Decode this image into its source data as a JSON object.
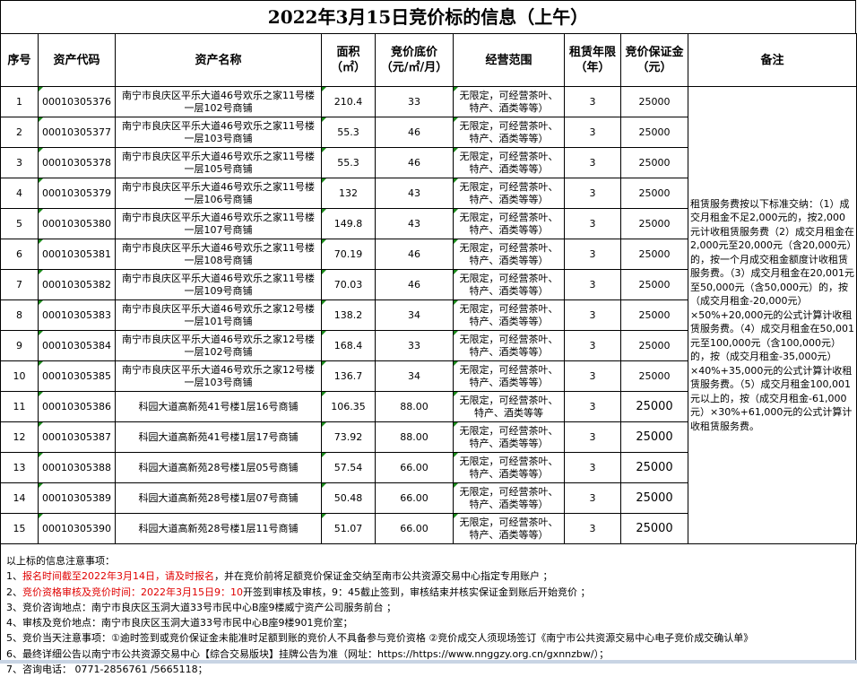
{
  "title": "2022年3月15日竞价标的信息（上午）",
  "headers": [
    "序号",
    "资产代码",
    "资产名称",
    "面积（㎡）",
    "竞价底价（元/㎡/月）",
    "经营范围",
    "租赁年限（年）",
    "竞价保证金（元）",
    "备注"
  ],
  "rows": [
    {
      "no": "1",
      "code": "00010305376",
      "name": "南宁市良庆区平乐大道46号欢乐之家11号楼一层102号商铺",
      "area": "210.4",
      "price": "33",
      "scope": "无限定，可经营茶叶、特产、酒类等等）",
      "years": "3",
      "deposit": "25000"
    },
    {
      "no": "2",
      "code": "00010305377",
      "name": "南宁市良庆区平乐大道46号欢乐之家11号楼一层103号商铺",
      "area": "55.3",
      "price": "46",
      "scope": "无限定，可经营茶叶、特产、酒类等等）",
      "years": "3",
      "deposit": "25000"
    },
    {
      "no": "3",
      "code": "00010305378",
      "name": "南宁市良庆区平乐大道46号欢乐之家11号楼一层105号商铺",
      "area": "55.3",
      "price": "46",
      "scope": "无限定，可经营茶叶、特产、酒类等等）",
      "years": "3",
      "deposit": "25000"
    },
    {
      "no": "4",
      "code": "00010305379",
      "name": "南宁市良庆区平乐大道46号欢乐之家11号楼一层106号商铺",
      "area": "132",
      "price": "43",
      "scope": "无限定，可经营茶叶、特产、酒类等等）",
      "years": "3",
      "deposit": "25000"
    },
    {
      "no": "5",
      "code": "00010305380",
      "name": "南宁市良庆区平乐大道46号欢乐之家11号楼一层107号商铺",
      "area": "149.8",
      "price": "43",
      "scope": "无限定，可经营茶叶、特产、酒类等等）",
      "years": "3",
      "deposit": "25000"
    },
    {
      "no": "6",
      "code": "00010305381",
      "name": "南宁市良庆区平乐大道46号欢乐之家11号楼一层108号商铺",
      "area": "70.19",
      "price": "46",
      "scope": "无限定，可经营茶叶、特产、酒类等等）",
      "years": "3",
      "deposit": "25000"
    },
    {
      "no": "7",
      "code": "00010305382",
      "name": "南宁市良庆区平乐大道46号欢乐之家11号楼一层109号商铺",
      "area": "70.03",
      "price": "46",
      "scope": "无限定，可经营茶叶、特产、酒类等等）",
      "years": "3",
      "deposit": "25000"
    },
    {
      "no": "8",
      "code": "00010305383",
      "name": "南宁市良庆区平乐大道46号欢乐之家12号楼一层101号商铺",
      "area": "138.2",
      "price": "34",
      "scope": "无限定，可经营茶叶、特产、酒类等等）",
      "years": "3",
      "deposit": "25000"
    },
    {
      "no": "9",
      "code": "00010305384",
      "name": "南宁市良庆区平乐大道46号欢乐之家12号楼一层102号商铺",
      "area": "168.4",
      "price": "33",
      "scope": "无限定，可经营茶叶、特产、酒类等等）",
      "years": "3",
      "deposit": "25000"
    },
    {
      "no": "10",
      "code": "00010305385",
      "name": "南宁市良庆区平乐大道46号欢乐之家12号楼一层103号商铺",
      "area": "136.7",
      "price": "34",
      "scope": "无限定，可经营茶叶、特产、酒类等等）",
      "years": "3",
      "deposit": "25000"
    },
    {
      "no": "11",
      "code": "00010305386",
      "name": "科园大道高新苑41号楼1层16号商铺",
      "area": "106.35",
      "price": "88.00",
      "scope": "无限定，可经营茶叶、特产、酒类等等",
      "years": "3",
      "deposit": "25000"
    },
    {
      "no": "12",
      "code": "00010305387",
      "name": "科园大道高新苑41号楼1层17号商铺",
      "area": "73.92",
      "price": "88.00",
      "scope": "无限定，可经营茶叶、特产、酒类等等）",
      "years": "3",
      "deposit": "25000"
    },
    {
      "no": "13",
      "code": "00010305388",
      "name": "科园大道高新苑28号楼1层05号商铺",
      "area": "57.54",
      "price": "66.00",
      "scope": "无限定，可经营茶叶、特产、酒类等等）",
      "years": "3",
      "deposit": "25000"
    },
    {
      "no": "14",
      "code": "00010305389",
      "name": "科园大道高新苑28号楼1层07号商铺",
      "area": "50.48",
      "price": "66.00",
      "scope": "无限定，可经营茶叶、特产、酒类等等）",
      "years": "3",
      "deposit": "25000"
    },
    {
      "no": "15",
      "code": "00010305390",
      "name": "科园大道高新苑28号楼1层11号商铺",
      "area": "51.07",
      "price": "66.00",
      "scope": "无限定，可经营茶叶、特产、酒类等等）",
      "years": "3",
      "deposit": "25000"
    }
  ],
  "remark": "租赁服务费按以下标准交纳：（1）成交月租金不足2,000元的，按2,000元计收租赁服务费（2）成交月租金在2,000元至20,000元（含20,000元）的，按一个月成交租金额度计收租赁服务费。（3）成交月租金在20,001元至50,000元（含50,000元）的，按（成交月租金-20,000元）×50%+20,000元的公式计算计收租赁服务费。（4）成交月租金在50,001元至100,000元（含100,000元）的，按（成交月租金-35,000元）×40%+35,000元的公式计算计收租赁服务费。（5）成交月租金100,001元以上的，按（成交月租金-61,000元）×30%+61,000元的公式计算计收租赁服务费。",
  "notes": {
    "heading": "以上标的信息注意事项：",
    "n1_prefix": "1、",
    "n1_red": "报名时间截至2022年3月14日，请及时报名",
    "n1_rest": "，并在竞价前将足额竞价保证金交纳至南市公共资源交易中心指定专用账户 ；",
    "n2_prefix": "2、",
    "n2_red": "竞价资格审核及竞价时间：2022年3月15日9：10",
    "n2_rest": "开签到审核及审核，9：45截止签到，审核结束并核实保证金到账后开始竞价 ；",
    "n3": "3、竞价咨询地点：南宁市良庆区玉洞大道33号市民中心B座9楼威宁资产公司服务前台 ；",
    "n4": "4、审核及竞价地点：南宁市良庆区玉洞大道33号市民中心B座9楼901竞价室；",
    "n5": "5、竞价当天注意事项：①逾时签到或竞价保证金未能准时足额到账的竞价人不具备参与竞价资格 ②竞价成交人须现场签订《南宁市公共资源交易中心电子竞价成交确认单》",
    "n6": "6、最终详细公告以南宁市公共资源交易中心【综合交易版块】挂牌公告为准（网址：https://https://www.nnggzy.org.cn/gxnnzbw/）；",
    "n7": "7、咨询电话： 0771-2856761 /5665118；"
  },
  "colors": {
    "highlight_text": "#e00000",
    "cell_marker": "#1a8a1a"
  }
}
